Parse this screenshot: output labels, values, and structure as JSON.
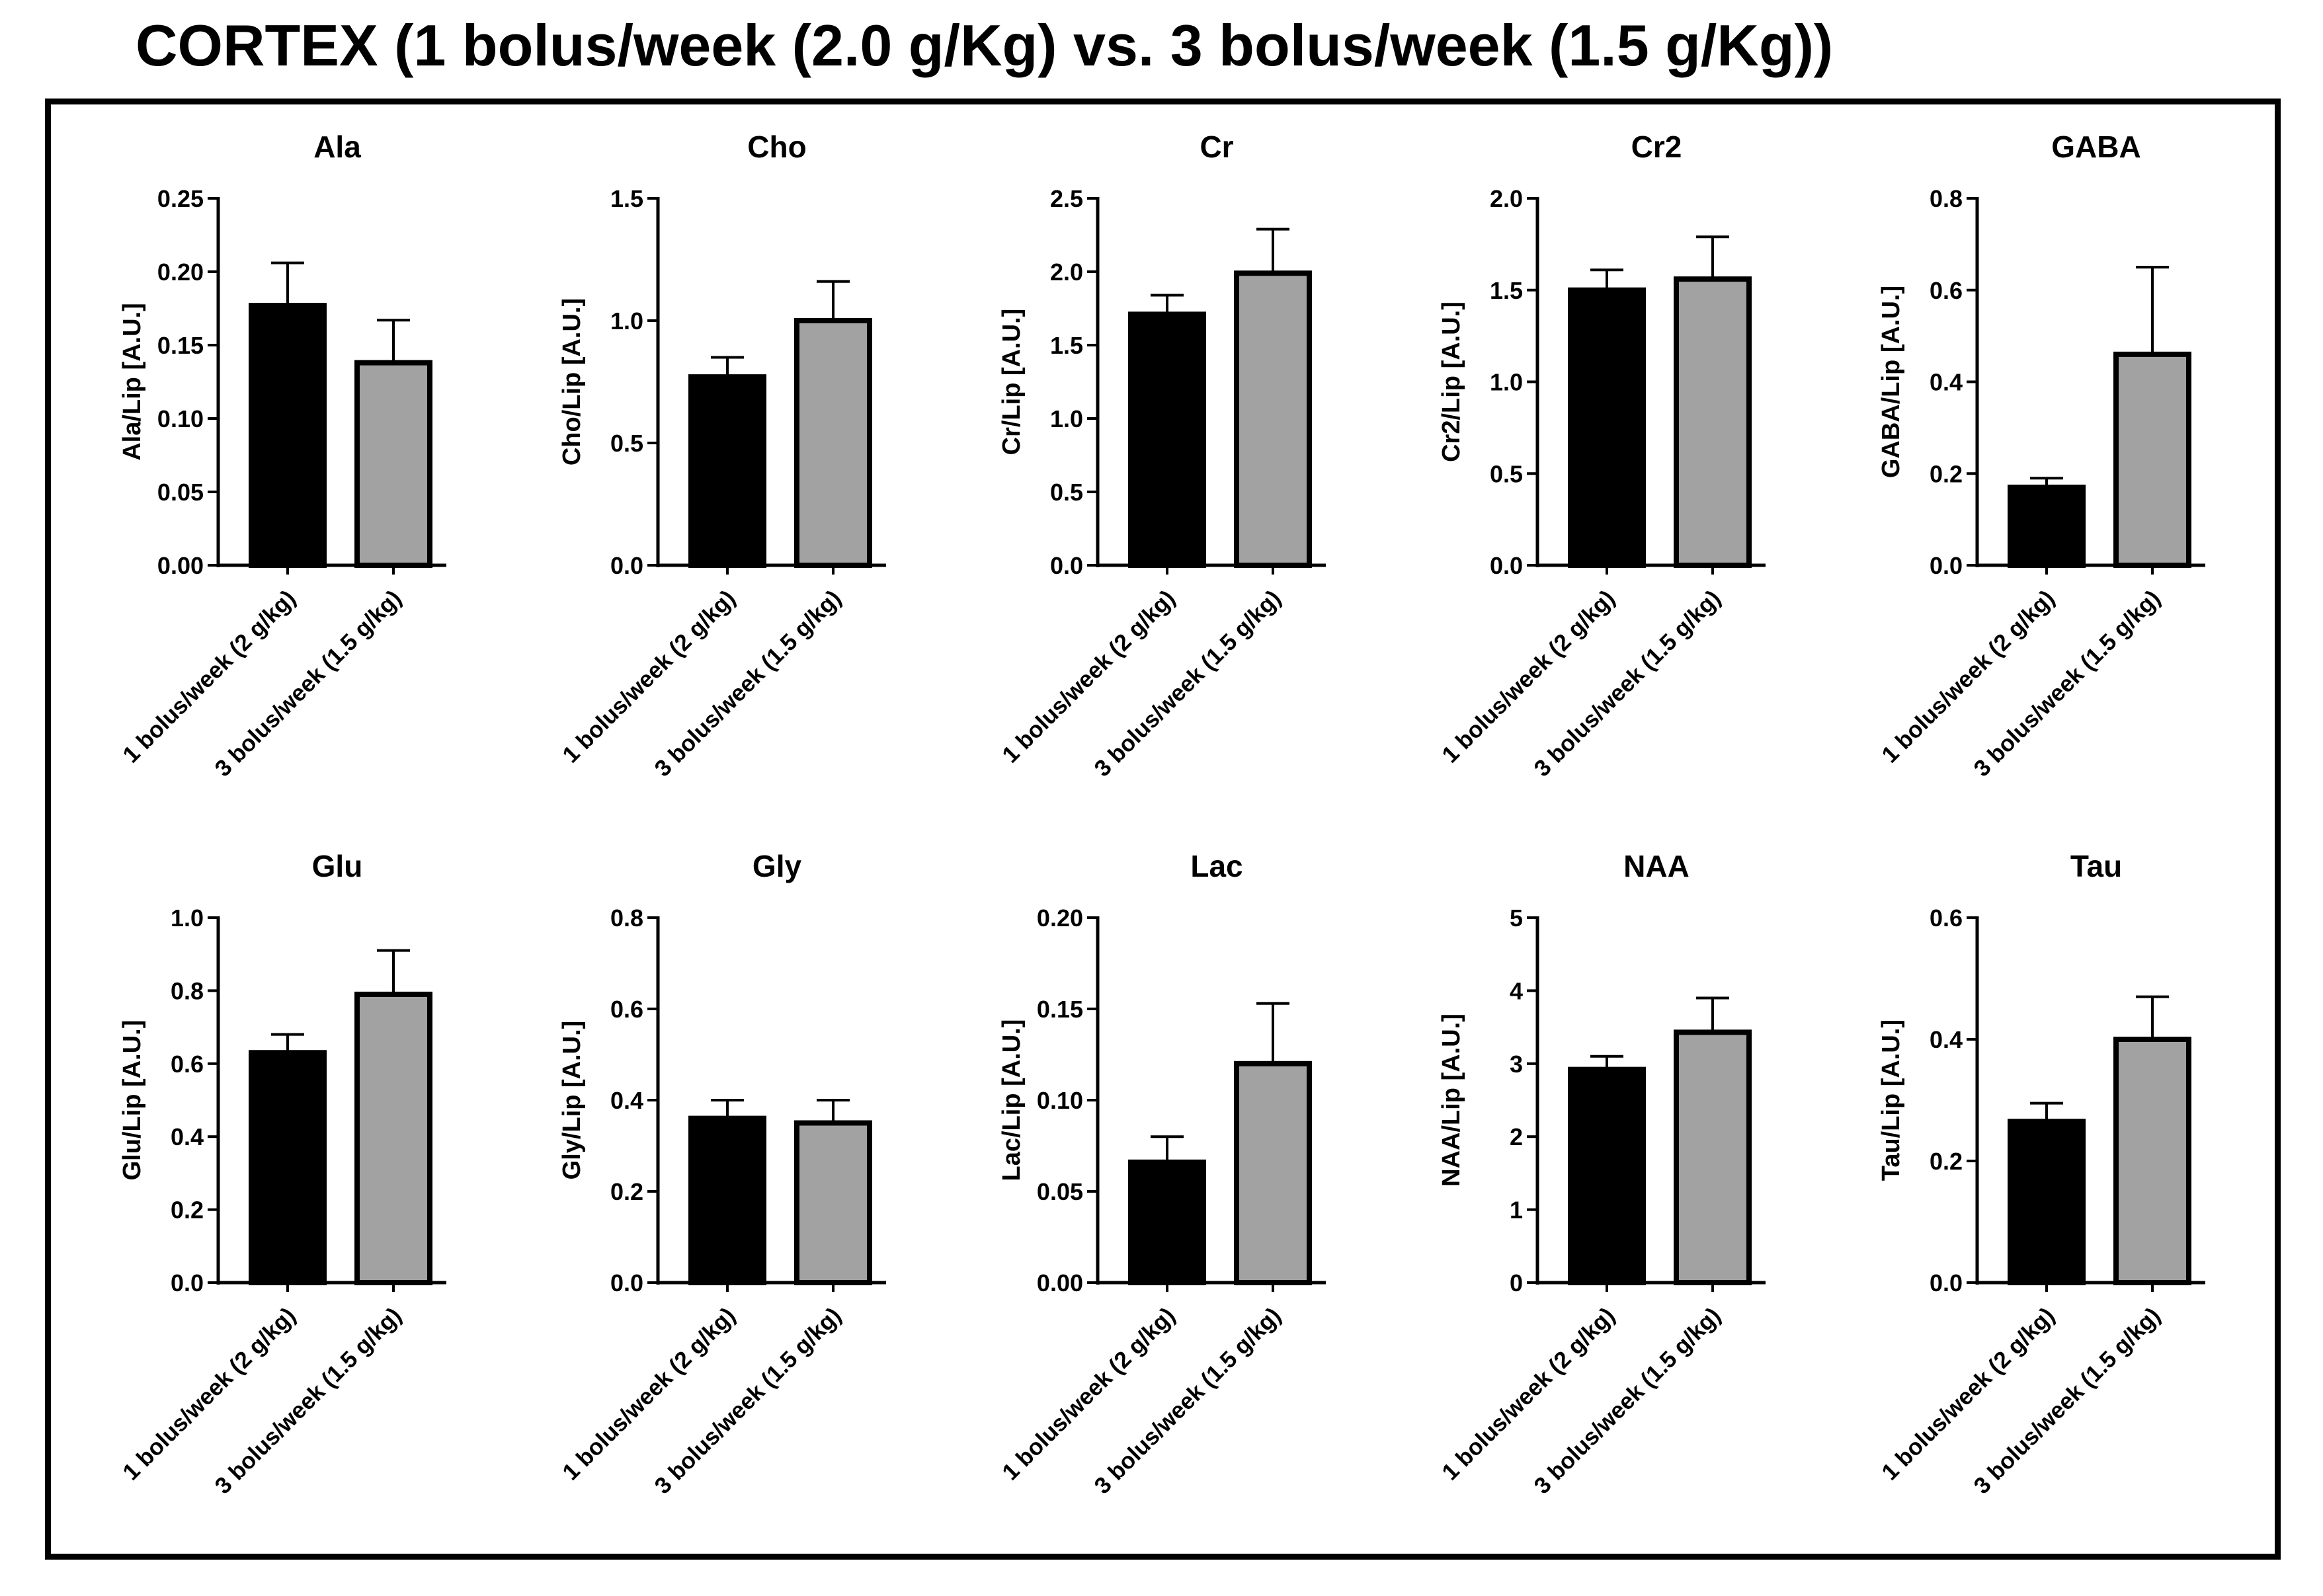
{
  "title": "CORTEX (1 bolus/week (2.0 g/Kg) vs. 3 bolus/week (1.5 g/Kg))",
  "colors": {
    "group1": "#000000",
    "group2": "#a2a2a2",
    "frame": "#000000"
  },
  "chart_data": [
    {
      "type": "bar",
      "title": "Ala",
      "ylabel": "Ala/Lip [A.U.]",
      "categories": [
        "1 bolus/week (2 g/kg)",
        "3 bolus/week (1.5 g/kg)"
      ],
      "values": [
        0.177,
        0.138
      ],
      "errors": [
        0.029,
        0.029
      ],
      "ylim": [
        0,
        0.25
      ],
      "yticks": [
        "0.00",
        "0.05",
        "0.10",
        "0.15",
        "0.20",
        "0.25"
      ]
    },
    {
      "type": "bar",
      "title": "Cho",
      "ylabel": "Cho/Lip [A.U.]",
      "categories": [
        "1 bolus/week (2 g/kg)",
        "3 bolus/week (1.5 g/kg)"
      ],
      "values": [
        0.77,
        1.0
      ],
      "errors": [
        0.08,
        0.16
      ],
      "ylim": [
        0,
        1.5
      ],
      "yticks": [
        "0.0",
        "0.5",
        "1.0",
        "1.5"
      ]
    },
    {
      "type": "bar",
      "title": "Cr",
      "ylabel": "Cr/Lip [A.U.]",
      "categories": [
        "1 bolus/week (2 g/kg)",
        "3 bolus/week (1.5 g/kg)"
      ],
      "values": [
        1.71,
        1.99
      ],
      "errors": [
        0.13,
        0.3
      ],
      "ylim": [
        0,
        2.5
      ],
      "yticks": [
        "0.0",
        "0.5",
        "1.0",
        "1.5",
        "2.0",
        "2.5"
      ]
    },
    {
      "type": "bar",
      "title": "Cr2",
      "ylabel": "Cr2/Lip [A.U.]",
      "categories": [
        "1 bolus/week (2 g/kg)",
        "3 bolus/week (1.5 g/kg)"
      ],
      "values": [
        1.5,
        1.56
      ],
      "errors": [
        0.11,
        0.23
      ],
      "ylim": [
        0,
        2.0
      ],
      "yticks": [
        "0.0",
        "0.5",
        "1.0",
        "1.5",
        "2.0"
      ]
    },
    {
      "type": "bar",
      "title": "GABA",
      "ylabel": "GABA/Lip [A.U.]",
      "categories": [
        "1 bolus/week (2 g/kg)",
        "3 bolus/week (1.5 g/kg)"
      ],
      "values": [
        0.17,
        0.46
      ],
      "errors": [
        0.02,
        0.19
      ],
      "ylim": [
        0,
        0.8
      ],
      "yticks": [
        "0.0",
        "0.2",
        "0.4",
        "0.6",
        "0.8"
      ]
    },
    {
      "type": "bar",
      "title": "Glu",
      "ylabel": "Glu/Lip [A.U.]",
      "categories": [
        "1 bolus/week (2 g/kg)",
        "3 bolus/week (1.5 g/kg)"
      ],
      "values": [
        0.63,
        0.79
      ],
      "errors": [
        0.05,
        0.12
      ],
      "ylim": [
        0,
        1.0
      ],
      "yticks": [
        "0.0",
        "0.2",
        "0.4",
        "0.6",
        "0.8",
        "1.0"
      ]
    },
    {
      "type": "bar",
      "title": "Gly",
      "ylabel": "Gly/Lip [A.U.]",
      "categories": [
        "1 bolus/week (2 g/kg)",
        "3 bolus/week (1.5 g/kg)"
      ],
      "values": [
        0.36,
        0.35
      ],
      "errors": [
        0.04,
        0.05
      ],
      "ylim": [
        0,
        0.8
      ],
      "yticks": [
        "0.0",
        "0.2",
        "0.4",
        "0.6",
        "0.8"
      ]
    },
    {
      "type": "bar",
      "title": "Lac",
      "ylabel": "Lac/Lip [A.U.]",
      "categories": [
        "1 bolus/week (2 g/kg)",
        "3 bolus/week (1.5 g/kg)"
      ],
      "values": [
        0.066,
        0.12
      ],
      "errors": [
        0.014,
        0.033
      ],
      "ylim": [
        0,
        0.2
      ],
      "yticks": [
        "0.00",
        "0.05",
        "0.10",
        "0.15",
        "0.20"
      ]
    },
    {
      "type": "bar",
      "title": "NAA",
      "ylabel": "NAA/Lip [A.U.]",
      "categories": [
        "1 bolus/week (2 g/kg)",
        "3 bolus/week (1.5 g/kg)"
      ],
      "values": [
        2.92,
        3.43
      ],
      "errors": [
        0.18,
        0.47
      ],
      "ylim": [
        0,
        5
      ],
      "yticks": [
        "0",
        "1",
        "2",
        "3",
        "4",
        "5"
      ]
    },
    {
      "type": "bar",
      "title": "Tau",
      "ylabel": "Tau/Lip [A.U.]",
      "categories": [
        "1 bolus/week (2 g/kg)",
        "3 bolus/week (1.5 g/kg)"
      ],
      "values": [
        0.265,
        0.4
      ],
      "errors": [
        0.03,
        0.07
      ],
      "ylim": [
        0,
        0.6
      ],
      "yticks": [
        "0.0",
        "0.2",
        "0.4",
        "0.6"
      ]
    }
  ]
}
